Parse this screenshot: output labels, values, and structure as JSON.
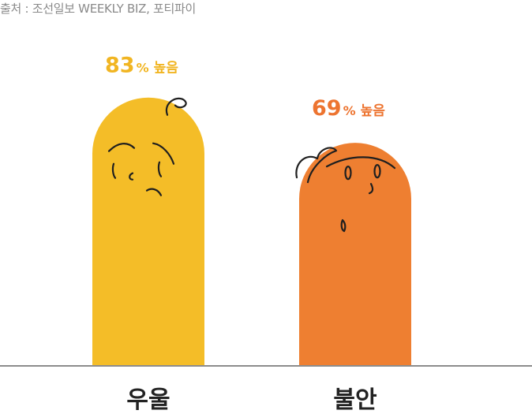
{
  "source": "출처 : 조선일보 WEEKLY BIZ, 포티파이",
  "chart_data": {
    "type": "bar",
    "categories": [
      "우울",
      "불안"
    ],
    "values": [
      83,
      69
    ],
    "unit": "%",
    "value_suffix": "높음",
    "ylim": [
      0,
      100
    ],
    "grid": false,
    "colors": [
      "#f4bd28",
      "#ee7f31"
    ],
    "label_colors": [
      "#f1b522",
      "#ed7430"
    ],
    "axis_color": "#8c8c8c",
    "faces": [
      "sad-face-icon",
      "worried-face-icon"
    ]
  }
}
